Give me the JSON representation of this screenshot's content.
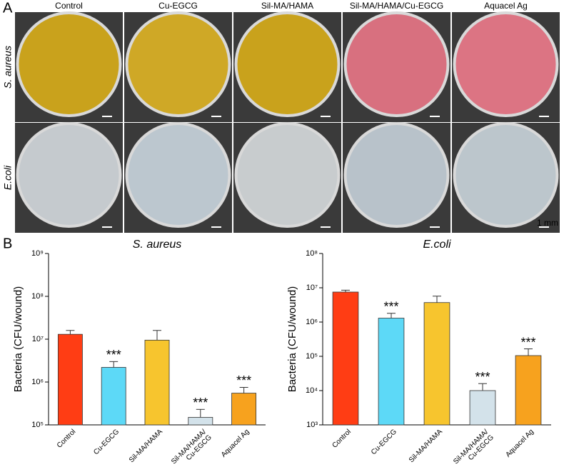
{
  "panel_a": {
    "letter": "A",
    "columns": [
      "Control",
      "Cu-EGCG",
      "Sil-MA/HAMA",
      "Sil-MA/HAMA/Cu-EGCG",
      "Aquacel Ag"
    ],
    "rows": [
      "S. aureus",
      "E.coli"
    ],
    "scale_bar": "1 mm"
  },
  "panel_b": {
    "letter": "B"
  },
  "chart_data": [
    {
      "type": "bar",
      "title": "S. aureus",
      "y_label": "Bacteria (CFU/wound)",
      "log_scale": true,
      "categories": [
        "Control",
        "Cu-EGCG",
        "Sil-MA/HAMA",
        "Sil-MA/HAMA/\nCu-EGCG",
        "Aquacel Ag"
      ],
      "values": [
        13000000,
        2200000,
        9500000,
        150000,
        550000
      ],
      "errors": [
        3000000,
        800000,
        6500000,
        80000,
        200000
      ],
      "significance": [
        null,
        "***",
        null,
        "***",
        "***"
      ],
      "colors": [
        "#ff3d14",
        "#5dd9f7",
        "#f7c52e",
        "#d3e2ea",
        "#f7a21e"
      ],
      "ylim": [
        100000,
        1000000000
      ],
      "yticks": [
        {
          "value": 100000,
          "label": "10⁵"
        },
        {
          "value": 1000000,
          "label": "10⁶"
        },
        {
          "value": 10000000,
          "label": "10⁷"
        },
        {
          "value": 100000000,
          "label": "10⁸"
        },
        {
          "value": 1000000000,
          "label": "10⁹"
        }
      ]
    },
    {
      "type": "bar",
      "title": "E.coli",
      "y_label": "Bacteria (CFU/wound)",
      "log_scale": true,
      "categories": [
        "Control",
        "Cu-EGCG",
        "Sil-MA/HAMA",
        "Sil-MA/HAMA/\nCu-EGCG",
        "Aquacel Ag"
      ],
      "values": [
        7500000,
        1300000,
        3700000,
        10000,
        105000
      ],
      "errors": [
        1000000,
        500000,
        2000000,
        6000,
        60000
      ],
      "significance": [
        null,
        "***",
        null,
        "***",
        "***"
      ],
      "colors": [
        "#ff3d14",
        "#5dd9f7",
        "#f7c52e",
        "#d3e2ea",
        "#f7a21e"
      ],
      "ylim": [
        1000,
        100000000
      ],
      "yticks": [
        {
          "value": 1000,
          "label": "10³"
        },
        {
          "value": 10000,
          "label": "10⁴"
        },
        {
          "value": 100000,
          "label": "10⁵"
        },
        {
          "value": 1000000,
          "label": "10⁶"
        },
        {
          "value": 10000000,
          "label": "10⁷"
        },
        {
          "value": 100000000,
          "label": "10⁸"
        }
      ]
    }
  ]
}
